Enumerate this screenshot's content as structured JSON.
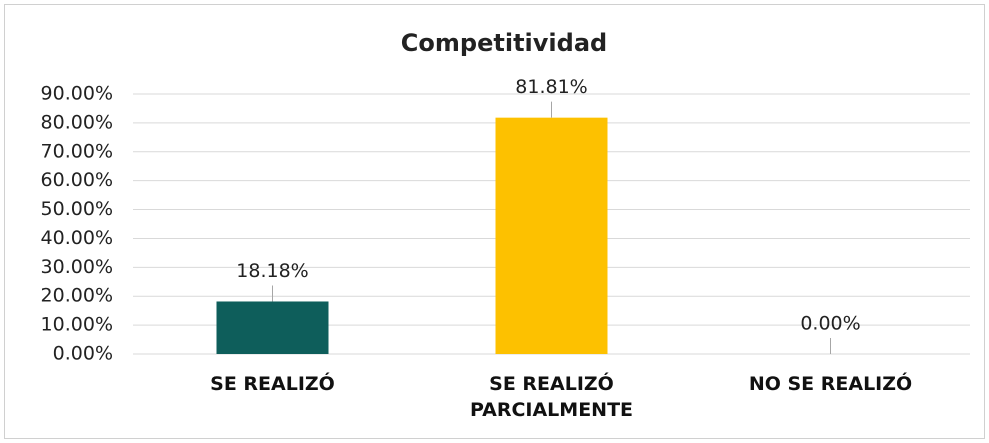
{
  "chart_data": {
    "type": "bar",
    "title": "Competitividad",
    "categories": [
      "SE REALIZÓ",
      "SE REALIZÓ PARCIALMENTE",
      "NO SE REALIZÓ"
    ],
    "values": [
      18.18,
      81.81,
      0
    ],
    "value_labels": [
      "18.18%",
      "81.81%",
      "0.00%"
    ],
    "colors": [
      "#0e5e5b",
      "#fdc100",
      "#888888"
    ],
    "ylim": [
      0,
      90
    ],
    "yticks": [
      {
        "value": 0,
        "label": "0.00%"
      },
      {
        "value": 10,
        "label": "10.00%"
      },
      {
        "value": 20,
        "label": "20.00%"
      },
      {
        "value": 30,
        "label": "30.00%"
      },
      {
        "value": 40,
        "label": "40.00%"
      },
      {
        "value": 50,
        "label": "50.00%"
      },
      {
        "value": 60,
        "label": "60.00%"
      },
      {
        "value": 70,
        "label": "70.00%"
      },
      {
        "value": 80,
        "label": "80.00%"
      },
      {
        "value": 90,
        "label": "90.00%"
      }
    ],
    "grid": true
  }
}
